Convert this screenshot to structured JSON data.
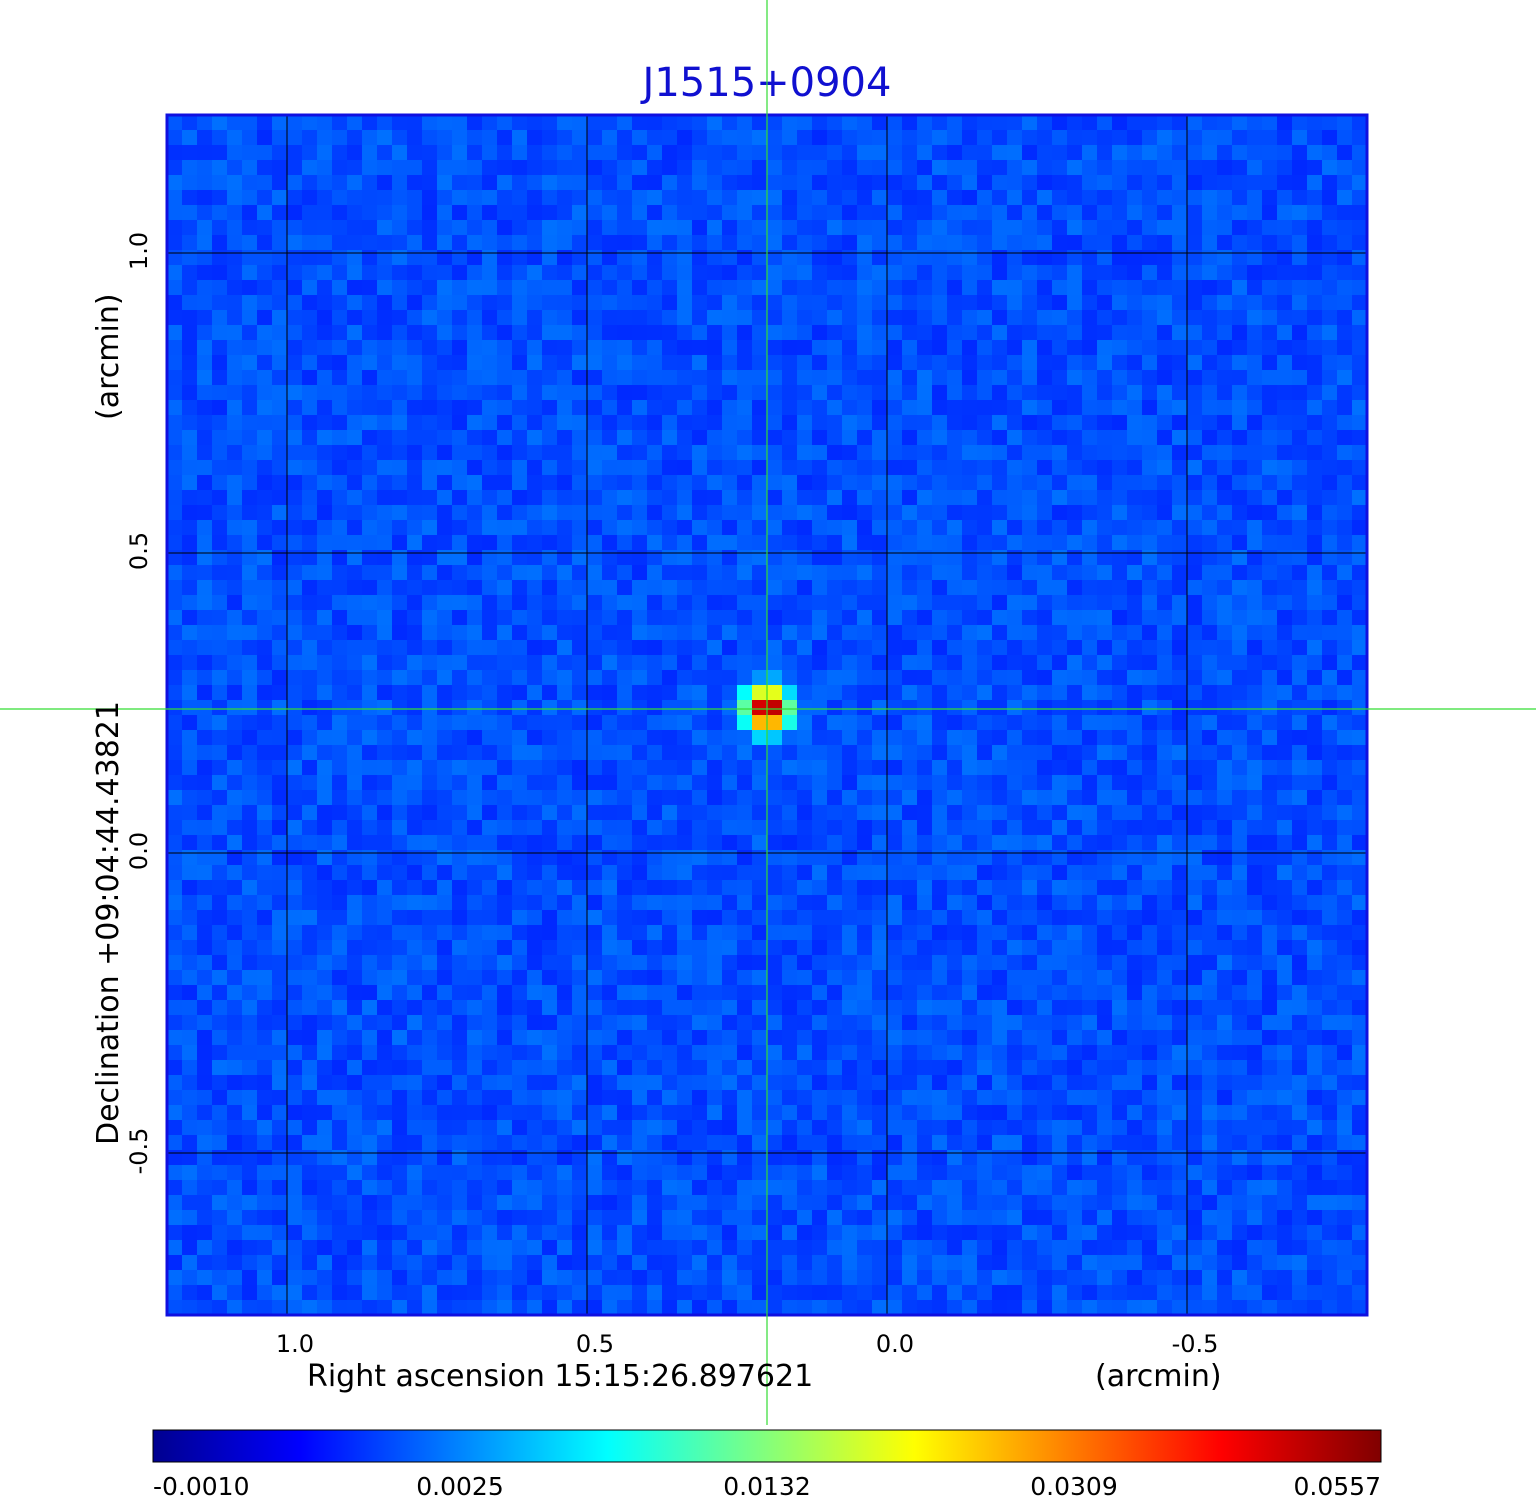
{
  "chart_data": {
    "type": "heatmap",
    "title": "J1515+0904",
    "xlabel": "Right ascension  15:15:26.897621",
    "xunit": "(arcmin)",
    "ylabel": "Declination  +09:04:44.43821",
    "yunit": "(arcmin)",
    "xlim": [
      1.2,
      -0.8
    ],
    "ylim": [
      -0.77,
      1.23
    ],
    "x_ticks": [
      {
        "value": 1.0,
        "label": "1.0"
      },
      {
        "value": 0.5,
        "label": "0.5"
      },
      {
        "value": 0.0,
        "label": "0.0"
      },
      {
        "value": -0.5,
        "label": "-0.5"
      }
    ],
    "y_ticks": [
      {
        "value": 1.0,
        "label": "1.0"
      },
      {
        "value": 0.5,
        "label": "0.5"
      },
      {
        "value": 0.0,
        "label": "0.0"
      },
      {
        "value": -0.5,
        "label": "-0.5"
      }
    ],
    "grid": true,
    "crosshair": {
      "x": 0.2,
      "y": 0.24,
      "color": "#33dd33"
    },
    "source": {
      "x": 0.2,
      "y": 0.24,
      "peak": 0.0557
    },
    "background_level": 0.001,
    "colormap": "jet",
    "colorbar": {
      "ticks": [
        {
          "label": "-0.0010",
          "frac": 0.0
        },
        {
          "label": "0.0025",
          "frac": 0.25
        },
        {
          "label": "0.0132",
          "frac": 0.5
        },
        {
          "label": "0.0309",
          "frac": 0.75
        },
        {
          "label": "0.0557",
          "frac": 1.0
        }
      ]
    }
  },
  "colors": {
    "title": "#1010d0",
    "frame": "#1010e0",
    "grid": "#000000",
    "crosshair": "#33dd33"
  }
}
